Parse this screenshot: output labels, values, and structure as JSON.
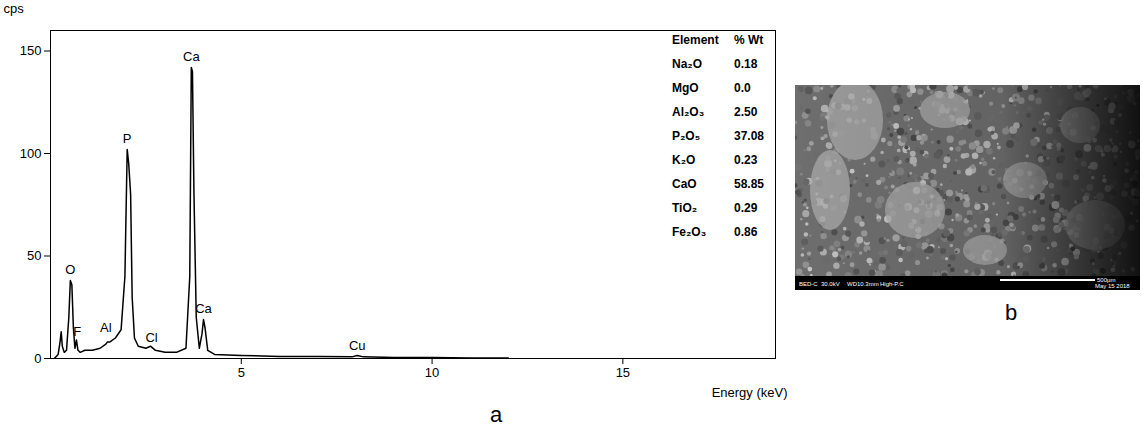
{
  "chart_data": {
    "type": "line",
    "panel_label": "a",
    "x_label": "Energy (keV)",
    "y_label": "cps",
    "x": [
      0.1,
      0.2,
      0.25,
      0.28,
      0.31,
      0.36,
      0.42,
      0.48,
      0.52,
      0.56,
      0.6,
      0.64,
      0.68,
      0.72,
      0.78,
      0.9,
      1.1,
      1.3,
      1.45,
      1.49,
      1.55,
      1.7,
      1.85,
      1.95,
      2.01,
      2.05,
      2.1,
      2.14,
      2.2,
      2.3,
      2.5,
      2.62,
      2.75,
      3.0,
      3.3,
      3.55,
      3.65,
      3.69,
      3.72,
      3.76,
      3.82,
      3.9,
      3.97,
      4.01,
      4.05,
      4.12,
      4.3,
      5,
      6,
      7,
      7.9,
      8.04,
      8.2,
      9,
      10,
      11,
      12
    ],
    "values": [
      0,
      2,
      8,
      13,
      6,
      3,
      4,
      20,
      38,
      36,
      15,
      5,
      9,
      4,
      3,
      4,
      4,
      5,
      7,
      8,
      8,
      10,
      14,
      40,
      102,
      95,
      80,
      30,
      10,
      6,
      5,
      6,
      4,
      3,
      3,
      5,
      40,
      142,
      140,
      80,
      20,
      5,
      12,
      19,
      15,
      4,
      2,
      1.5,
      1,
      1,
      0.8,
      1.5,
      0.8,
      0.5,
      0.5,
      0.3,
      0.2
    ],
    "color": "#000000",
    "xlim": [
      0,
      19
    ],
    "ylim": [
      0,
      160
    ],
    "xticks": [
      5,
      10,
      15
    ],
    "yticks": [
      0,
      50,
      100,
      150
    ],
    "grid": false,
    "annotations": [
      {
        "text": "O",
        "x": 0.52,
        "y": 41
      },
      {
        "text": "F",
        "x": 0.7,
        "y": 11
      },
      {
        "text": "Al",
        "x": 1.45,
        "y": 13
      },
      {
        "text": "P",
        "x": 2.01,
        "y": 105
      },
      {
        "text": "Cl",
        "x": 2.65,
        "y": 8
      },
      {
        "text": "Ca",
        "x": 3.69,
        "y": 145
      },
      {
        "text": "Ca",
        "x": 4.01,
        "y": 22
      },
      {
        "text": "Cu",
        "x": 8.04,
        "y": 4
      }
    ],
    "table": {
      "header": [
        "Element",
        "% Wt"
      ],
      "rows": [
        [
          "Na₂O",
          "0.18"
        ],
        [
          "MgO",
          "0.0"
        ],
        [
          "Al₂O₃",
          "2.50"
        ],
        [
          "P₂O₅",
          "37.08"
        ],
        [
          "K₂O",
          "0.23"
        ],
        [
          "CaO",
          "58.85"
        ],
        [
          "TiO₂",
          "0.29"
        ],
        [
          "Fe₂O₃",
          "0.86"
        ]
      ]
    }
  },
  "image": {
    "panel_label": "b",
    "info_bar": [
      "BED-C",
      "30.0kV",
      "WD10.3mm",
      "High-P.C"
    ],
    "scale_bar": "500µm",
    "date": "May 15 2018"
  }
}
